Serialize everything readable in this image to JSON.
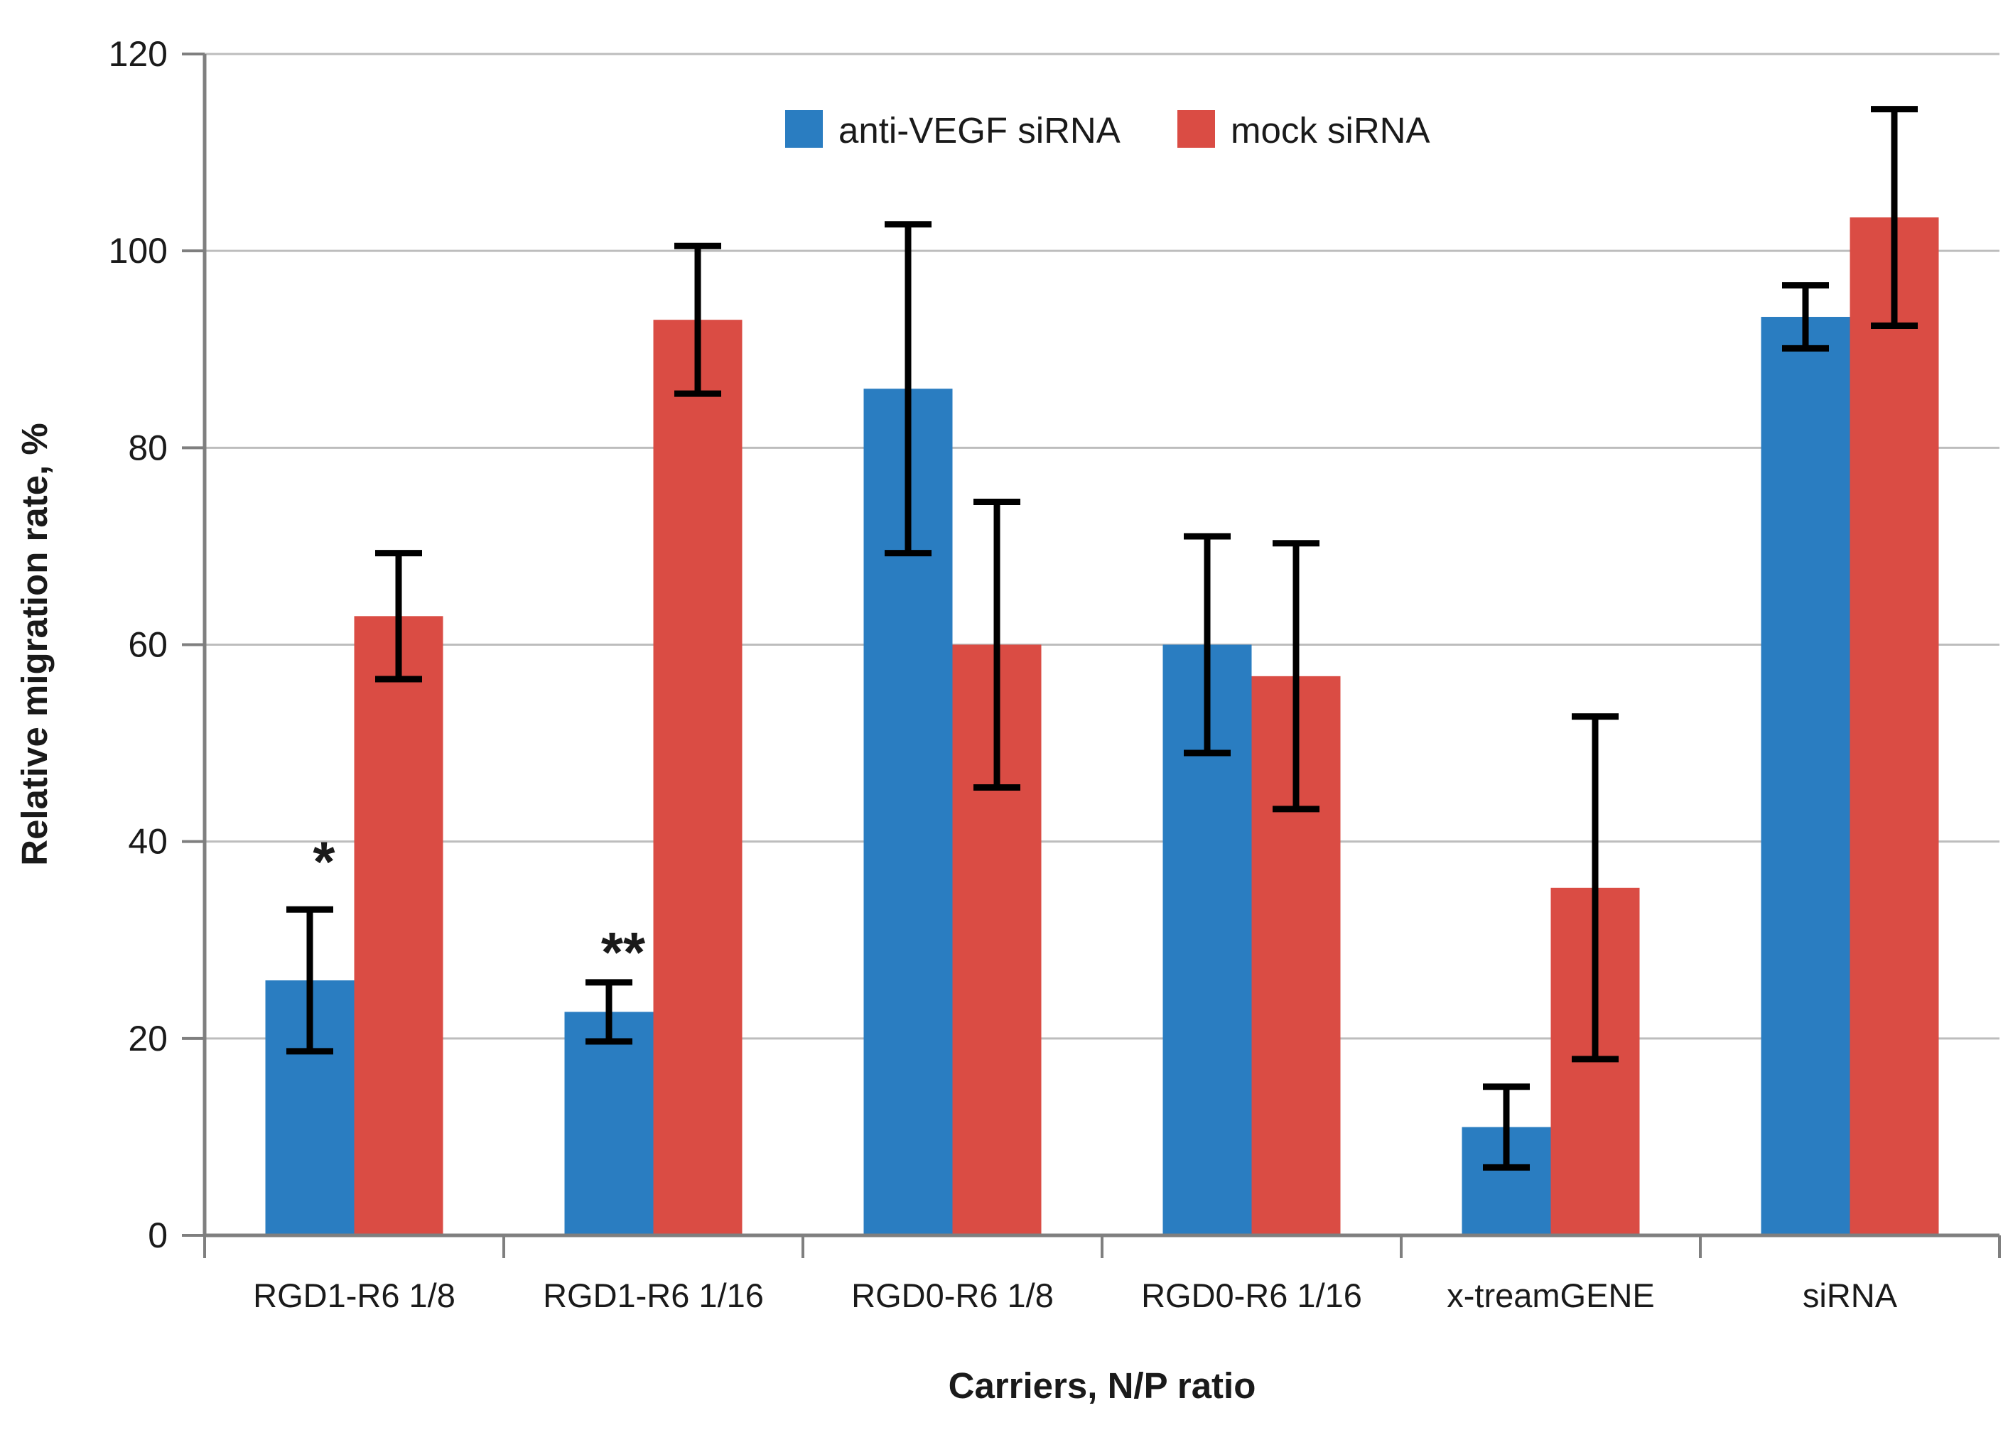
{
  "chart_data": {
    "type": "bar",
    "title": "",
    "xlabel": "Carriers, N/P ratio",
    "ylabel": "Relative migration rate, %",
    "ylim": [
      0,
      120
    ],
    "yticks": [
      0,
      20,
      40,
      60,
      80,
      100,
      120
    ],
    "grid": true,
    "legend_position": "top-center",
    "categories": [
      "RGD1-R6 1/8",
      "RGD1-R6 1/16",
      "RGD0-R6 1/8",
      "RGD0-R6 1/16",
      "x-treamGENE",
      "siRNA"
    ],
    "series": [
      {
        "name": "anti-VEGF siRNA",
        "color": "#2a7dc1",
        "values": [
          25.9,
          22.7,
          86.0,
          60.0,
          11.0,
          93.3
        ],
        "errors": [
          7.2,
          3.0,
          16.7,
          11.0,
          4.1,
          3.2
        ]
      },
      {
        "name": "mock siRNA",
        "color": "#da4c44",
        "values": [
          62.9,
          93.0,
          60.0,
          56.8,
          35.3,
          103.4
        ],
        "errors": [
          6.4,
          7.5,
          14.5,
          13.5,
          17.4,
          11.0
        ]
      }
    ],
    "annotations": [
      {
        "text": "*",
        "category_index": 0,
        "series_index": 0,
        "y": 38.7
      },
      {
        "text": "**",
        "category_index": 1,
        "series_index": 0,
        "y": 29.5
      }
    ],
    "colors": {
      "gridline": "#bdbdbd",
      "axis": "#7f7f7f",
      "error_bar": "#000000",
      "text": "#1a1a1a"
    }
  }
}
